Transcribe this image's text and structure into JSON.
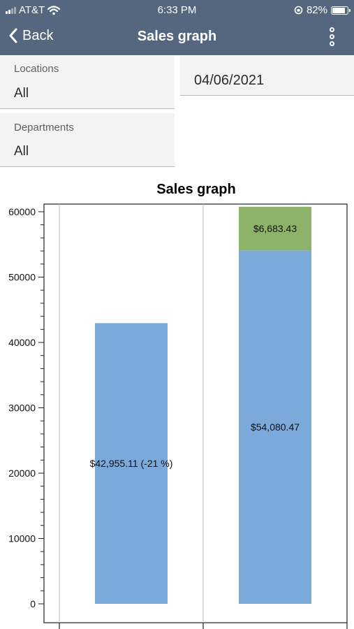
{
  "status_bar": {
    "carrier": "AT&T",
    "time": "6:33 PM",
    "battery": "82%"
  },
  "nav": {
    "back_label": "Back",
    "title": "Sales graph"
  },
  "filters": {
    "locations": {
      "label": "Locations",
      "value": "All"
    },
    "departments": {
      "label": "Departments",
      "value": "All"
    },
    "date": "04/06/2021"
  },
  "colors": {
    "header": "#55677f",
    "bar_blue": "#7aa9da",
    "bar_green": "#8db36a"
  },
  "chart_data": {
    "type": "bar",
    "title": "Sales graph",
    "xlabel": "",
    "ylabel": "",
    "ylim": [
      0,
      60000
    ],
    "y_ticks": [
      "0",
      "10000",
      "20000",
      "30000",
      "40000",
      "50000",
      "60000"
    ],
    "grid": "vertical category separators only",
    "bars": [
      {
        "segments": [
          {
            "value": 42955.11,
            "label": "$42,955.11 (-21 %)",
            "color": "#7aa9da"
          }
        ]
      },
      {
        "segments": [
          {
            "value": 54080.47,
            "label": "$54,080.47",
            "color": "#7aa9da"
          },
          {
            "value": 6683.43,
            "label": "$6,683.43",
            "color": "#8db36a"
          }
        ]
      }
    ]
  }
}
